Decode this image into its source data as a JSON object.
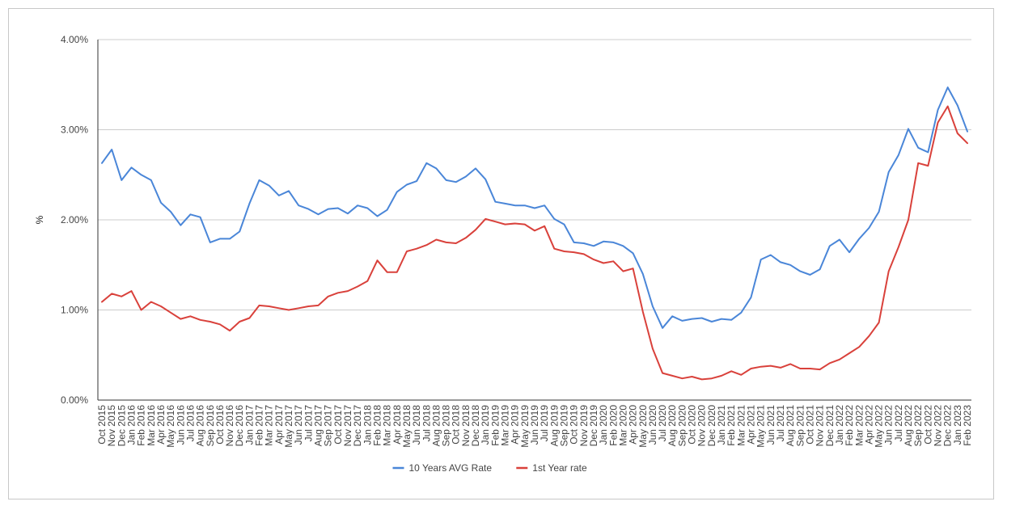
{
  "chart_data": {
    "type": "line",
    "title": "",
    "xlabel": "",
    "ylabel": "%",
    "ylim": [
      0,
      4
    ],
    "yticks": [
      "0.00%",
      "1.00%",
      "2.00%",
      "3.00%",
      "4.00%"
    ],
    "grid": true,
    "legend_position": "bottom",
    "categories": [
      "Oct 2015",
      "Nov 2015",
      "Dec 2015",
      "Jan 2016",
      "Feb 2016",
      "Mar 2016",
      "Apr 2016",
      "May 2016",
      "Jun 2016",
      "Jul 2016",
      "Aug 2016",
      "Sep 2016",
      "Oct 2016",
      "Nov 2016",
      "Dec 2016",
      "Jan 2017",
      "Feb 2017",
      "Mar 2017",
      "Apr 2017",
      "May 2017",
      "Jun 2017",
      "Jul 2017",
      "Aug 2017",
      "Sep 2017",
      "Oct 2017",
      "Nov 2017",
      "Dec 2017",
      "Jan 2018",
      "Feb 2018",
      "Mar 2018",
      "Apr 2018",
      "May 2018",
      "Jun 2018",
      "Jul 2018",
      "Aug 2018",
      "Sep 2018",
      "Oct 2018",
      "Nov 2018",
      "Dec 2018",
      "Jan 2019",
      "Feb 2019",
      "Mar 2019",
      "Apr 2019",
      "May 2019",
      "Jun 2019",
      "Jul 2019",
      "Aug 2019",
      "Sep 2019",
      "Oct 2019",
      "Nov 2019",
      "Dec 2019",
      "Jan 2020",
      "Feb 2020",
      "Mar 2020",
      "Apr 2020",
      "May 2020",
      "Jun 2020",
      "Jul 2020",
      "Aug 2020",
      "Sep 2020",
      "Oct 2020",
      "Nov 2020",
      "Dec 2020",
      "Jan 2021",
      "Feb 2021",
      "Mar 2021",
      "Apr 2021",
      "May 2021",
      "Jun 2021",
      "Jul 2021",
      "Aug 2021",
      "Sep 2021",
      "Oct 2021",
      "Nov 2021",
      "Dec 2021",
      "Jan 2022",
      "Feb 2022",
      "Mar 2022",
      "Apr 2022",
      "May 2022",
      "Jun 2022",
      "Jul 2022",
      "Aug 2022",
      "Sep 2022",
      "Oct 2022",
      "Nov 2022",
      "Dec 2022",
      "Jan 2023",
      "Feb 2023"
    ],
    "series": [
      {
        "name": "10 Years AVG Rate",
        "color": "#4a86d8",
        "values": [
          2.63,
          2.78,
          2.44,
          2.58,
          2.5,
          2.44,
          2.19,
          2.09,
          1.94,
          2.06,
          2.03,
          1.75,
          1.79,
          1.79,
          1.87,
          2.18,
          2.44,
          2.38,
          2.27,
          2.32,
          2.16,
          2.12,
          2.06,
          2.12,
          2.13,
          2.07,
          2.16,
          2.13,
          2.04,
          2.11,
          2.31,
          2.39,
          2.43,
          2.63,
          2.57,
          2.44,
          2.42,
          2.48,
          2.57,
          2.45,
          2.2,
          2.18,
          2.16,
          2.16,
          2.13,
          2.16,
          2.01,
          1.95,
          1.75,
          1.74,
          1.71,
          1.76,
          1.75,
          1.71,
          1.63,
          1.4,
          1.04,
          0.8,
          0.93,
          0.88,
          0.9,
          0.91,
          0.87,
          0.9,
          0.89,
          0.97,
          1.14,
          1.56,
          1.61,
          1.53,
          1.5,
          1.43,
          1.39,
          1.45,
          1.71,
          1.78,
          1.64,
          1.79,
          1.91,
          2.09,
          2.53,
          2.72,
          3.01,
          2.8,
          2.75,
          3.22,
          3.47,
          3.27,
          2.98
        ]
      },
      {
        "name": "1st Year rate",
        "color": "#d9413b",
        "values": [
          1.09,
          1.18,
          1.15,
          1.21,
          1.0,
          1.09,
          1.04,
          0.97,
          0.9,
          0.93,
          0.89,
          0.87,
          0.84,
          0.77,
          0.87,
          0.91,
          1.05,
          1.04,
          1.02,
          1.0,
          1.02,
          1.04,
          1.05,
          1.15,
          1.19,
          1.21,
          1.26,
          1.32,
          1.55,
          1.42,
          1.42,
          1.65,
          1.68,
          1.72,
          1.78,
          1.75,
          1.74,
          1.8,
          1.89,
          2.01,
          1.98,
          1.95,
          1.96,
          1.95,
          1.88,
          1.93,
          1.68,
          1.65,
          1.64,
          1.62,
          1.56,
          1.52,
          1.54,
          1.43,
          1.46,
          0.98,
          0.57,
          0.3,
          0.27,
          0.24,
          0.26,
          0.23,
          0.24,
          0.27,
          0.32,
          0.28,
          0.35,
          0.37,
          0.38,
          0.36,
          0.4,
          0.35,
          0.35,
          0.34,
          0.41,
          0.45,
          0.52,
          0.59,
          0.71,
          0.86,
          1.43,
          1.7,
          2.0,
          2.63,
          2.6,
          3.08,
          3.26,
          2.96,
          2.85
        ]
      }
    ]
  }
}
